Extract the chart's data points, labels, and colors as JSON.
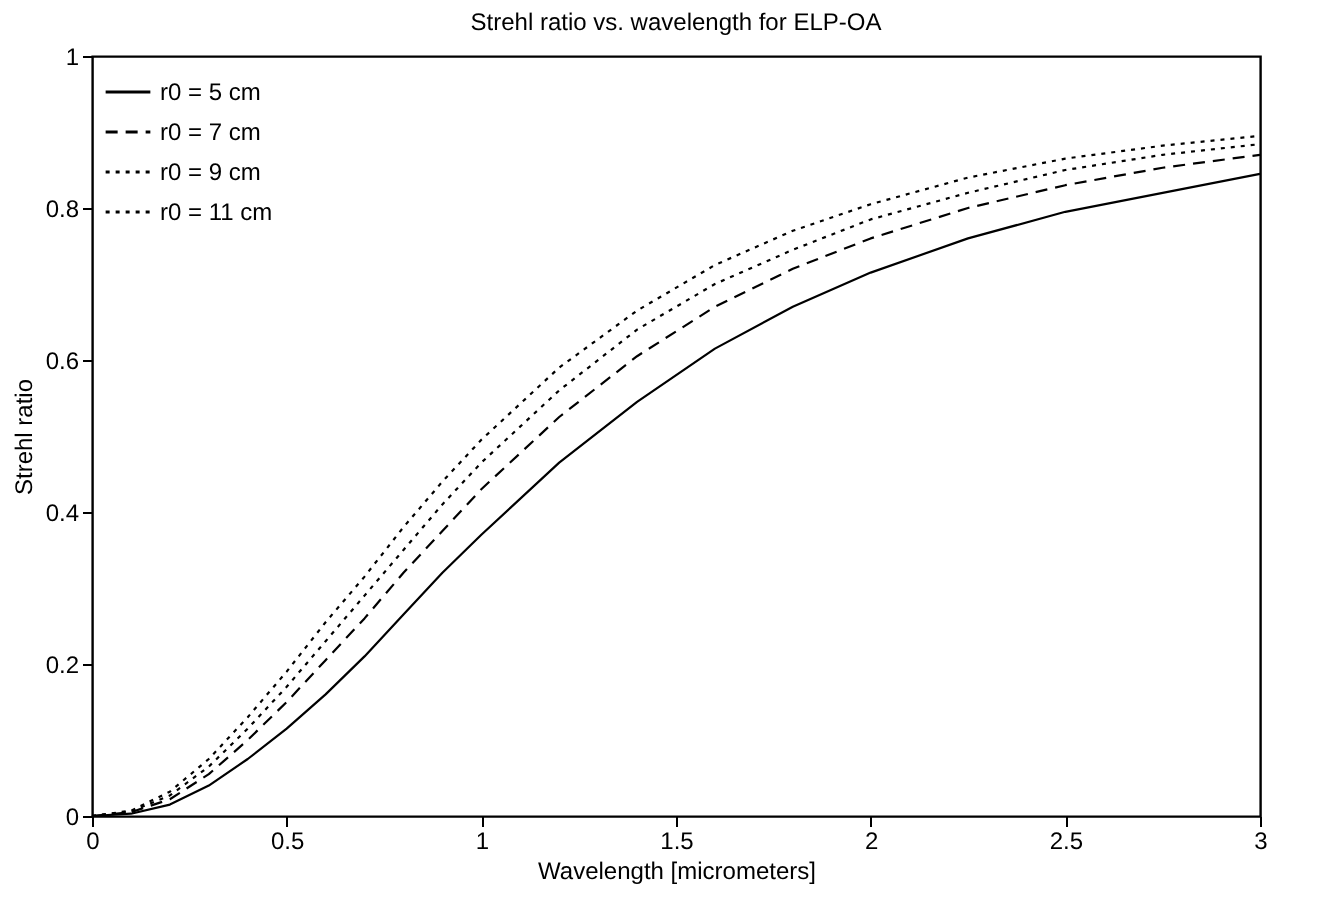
{
  "chart_data": {
    "type": "line",
    "title": "Strehl ratio vs. wavelength for ELP-OA",
    "xlabel": "Wavelength [micrometers]",
    "ylabel": "Strehl ratio",
    "x": [
      0,
      0.1,
      0.2,
      0.3,
      0.4,
      0.5,
      0.6,
      0.7,
      0.8,
      0.9,
      1.0,
      1.2,
      1.4,
      1.6,
      1.8,
      2.0,
      2.25,
      2.5,
      2.75,
      3.0
    ],
    "series": [
      {
        "name": "r0 =   5 cm",
        "color": "#000000",
        "line_style": "solid",
        "values": [
          0,
          0.003,
          0.015,
          0.04,
          0.075,
          0.115,
          0.16,
          0.21,
          0.265,
          0.32,
          0.37,
          0.465,
          0.545,
          0.615,
          0.67,
          0.715,
          0.76,
          0.795,
          0.82,
          0.845
        ]
      },
      {
        "name": "r0 =   7 cm",
        "color": "#000000",
        "line_style": "dashed",
        "values": [
          0,
          0.005,
          0.022,
          0.055,
          0.1,
          0.15,
          0.205,
          0.26,
          0.32,
          0.375,
          0.43,
          0.525,
          0.605,
          0.67,
          0.72,
          0.76,
          0.8,
          0.83,
          0.853,
          0.87
        ]
      },
      {
        "name": "r0 =   9 cm",
        "color": "#000000",
        "line_style": "dotted",
        "values": [
          0,
          0.006,
          0.027,
          0.065,
          0.115,
          0.17,
          0.23,
          0.29,
          0.35,
          0.41,
          0.465,
          0.56,
          0.64,
          0.7,
          0.745,
          0.785,
          0.82,
          0.85,
          0.87,
          0.884
        ]
      },
      {
        "name": "r0 = 11 cm",
        "color": "#000000",
        "line_style": "dotted",
        "values": [
          0,
          0.007,
          0.032,
          0.075,
          0.13,
          0.19,
          0.255,
          0.315,
          0.38,
          0.44,
          0.495,
          0.59,
          0.665,
          0.725,
          0.77,
          0.805,
          0.84,
          0.865,
          0.882,
          0.895
        ]
      }
    ],
    "xlim": [
      0,
      3
    ],
    "xticks": [
      0,
      0.5,
      1,
      1.5,
      2,
      2.5,
      3
    ],
    "ylim": [
      0,
      1
    ],
    "yticks": [
      0,
      0.2,
      0.4,
      0.6,
      0.8,
      1
    ],
    "grid": false,
    "legend": "top left",
    "marker": "none"
  }
}
